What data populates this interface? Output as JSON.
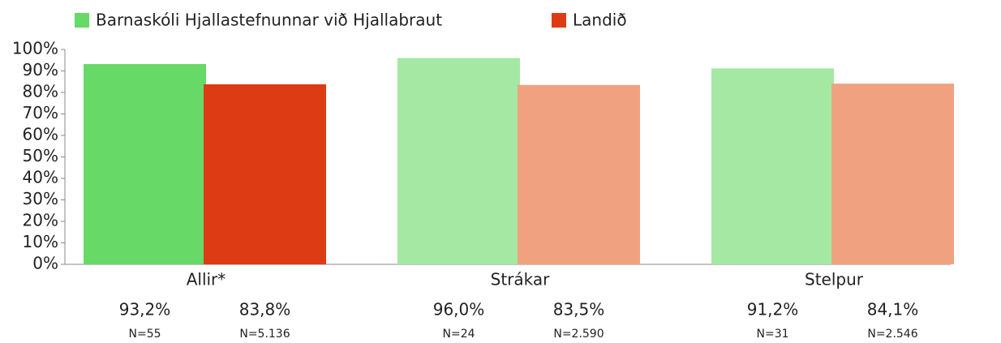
{
  "chart_data": {
    "type": "bar",
    "categories": [
      "Allir*",
      "Strákar",
      "Stelpur"
    ],
    "series": [
      {
        "name": "Barnaskóli Hjallastefnunnar við Hjallabraut",
        "color": "#66d966",
        "colors": [
          "#66d966",
          "#a4e8a4",
          "#a4e8a4"
        ],
        "values": [
          93.2,
          96.0,
          91.2
        ],
        "value_labels": [
          "93,2%",
          "96,0%",
          "91,2%"
        ],
        "n_labels": [
          "N=55",
          "N=24",
          "N=31"
        ]
      },
      {
        "name": "Landið",
        "color": "#dd3b14",
        "colors": [
          "#dd3b14",
          "#f0a280",
          "#f0a280"
        ],
        "values": [
          83.8,
          83.5,
          84.1
        ],
        "value_labels": [
          "83,8%",
          "83,5%",
          "84,1%"
        ],
        "n_labels": [
          "N=5.136",
          "N=2.590",
          "N=2.546"
        ]
      }
    ],
    "ylim": [
      0,
      100
    ],
    "yticks": [
      {
        "value": 0,
        "label": "0%"
      },
      {
        "value": 10,
        "label": "10%"
      },
      {
        "value": 20,
        "label": "20%"
      },
      {
        "value": 30,
        "label": "30%"
      },
      {
        "value": 40,
        "label": "40%"
      },
      {
        "value": 50,
        "label": "50%"
      },
      {
        "value": 60,
        "label": "60%"
      },
      {
        "value": 70,
        "label": "70%"
      },
      {
        "value": 80,
        "label": "80%"
      },
      {
        "value": 90,
        "label": "90%"
      },
      {
        "value": 100,
        "label": "100%"
      }
    ],
    "grid": false
  }
}
